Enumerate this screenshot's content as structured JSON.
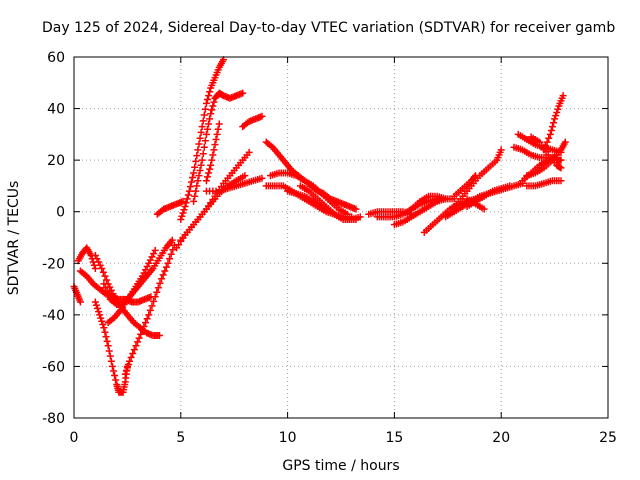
{
  "chart_data": {
    "type": "scatter",
    "title": "Day 125 of 2024, Sidereal Day-to-day VTEC variation (SDTVAR) for receiver gamb",
    "xlabel": "GPS time / hours",
    "ylabel": "SDTVAR / TECUs",
    "xlim": [
      0,
      25
    ],
    "ylim": [
      -80,
      60
    ],
    "xticks": [
      "0",
      "5",
      "10",
      "15",
      "20",
      "25"
    ],
    "yticks": [
      "-80",
      "-60",
      "-40",
      "-20",
      "0",
      "20",
      "40",
      "60"
    ],
    "grid": true,
    "marker": "plus",
    "color": "#ff0000",
    "series": [
      {
        "values": [
          [
            0.0,
            -29
          ],
          [
            0.15,
            -32
          ],
          [
            0.3,
            -35
          ]
        ]
      },
      {
        "values": [
          [
            0.2,
            -19
          ],
          [
            0.4,
            -16
          ],
          [
            0.6,
            -14
          ],
          [
            0.8,
            -17
          ],
          [
            1.0,
            -22
          ]
        ]
      },
      {
        "values": [
          [
            0.3,
            -23
          ],
          [
            0.6,
            -25
          ],
          [
            0.9,
            -28
          ],
          [
            1.2,
            -30
          ],
          [
            1.5,
            -32
          ],
          [
            1.8,
            -33
          ],
          [
            2.1,
            -34
          ],
          [
            2.4,
            -34
          ],
          [
            2.7,
            -35
          ],
          [
            3.0,
            -35
          ],
          [
            3.3,
            -34
          ],
          [
            3.6,
            -33
          ]
        ]
      },
      {
        "values": [
          [
            1.0,
            -17
          ],
          [
            1.3,
            -22
          ],
          [
            1.6,
            -28
          ],
          [
            1.9,
            -33
          ],
          [
            2.2,
            -37
          ],
          [
            2.5,
            -40
          ],
          [
            2.8,
            -43
          ],
          [
            3.1,
            -45
          ],
          [
            3.4,
            -47
          ],
          [
            3.7,
            -48
          ],
          [
            4.0,
            -48
          ]
        ]
      },
      {
        "values": [
          [
            1.0,
            -35
          ],
          [
            1.2,
            -40
          ],
          [
            1.4,
            -45
          ],
          [
            1.6,
            -52
          ],
          [
            1.8,
            -60
          ],
          [
            2.0,
            -67
          ],
          [
            2.1,
            -70
          ],
          [
            2.3,
            -70
          ],
          [
            2.4,
            -66
          ],
          [
            2.5,
            -60
          ]
        ]
      },
      {
        "values": [
          [
            2.4,
            -63
          ],
          [
            2.6,
            -58
          ],
          [
            2.9,
            -52
          ],
          [
            3.2,
            -46
          ],
          [
            3.5,
            -40
          ],
          [
            3.8,
            -33
          ],
          [
            4.1,
            -26
          ],
          [
            4.4,
            -20
          ],
          [
            4.7,
            -13
          ]
        ]
      },
      {
        "values": [
          [
            1.6,
            -43
          ],
          [
            1.9,
            -41
          ],
          [
            2.2,
            -38
          ],
          [
            2.5,
            -34
          ],
          [
            2.8,
            -31
          ],
          [
            3.1,
            -28
          ],
          [
            3.4,
            -25
          ],
          [
            3.7,
            -22
          ],
          [
            4.0,
            -18
          ],
          [
            4.3,
            -14
          ],
          [
            4.6,
            -11
          ]
        ]
      },
      {
        "values": [
          [
            1.4,
            -28
          ],
          [
            1.7,
            -34
          ],
          [
            2.0,
            -36
          ],
          [
            2.3,
            -36
          ],
          [
            2.6,
            -33
          ],
          [
            2.9,
            -29
          ],
          [
            3.2,
            -25
          ],
          [
            3.5,
            -20
          ],
          [
            3.8,
            -15
          ]
        ]
      },
      {
        "values": [
          [
            3.9,
            -1
          ],
          [
            4.2,
            1
          ],
          [
            4.5,
            2
          ],
          [
            4.8,
            3
          ],
          [
            5.1,
            4
          ]
        ]
      },
      {
        "values": [
          [
            5.0,
            -3
          ],
          [
            5.2,
            2
          ],
          [
            5.4,
            8
          ],
          [
            5.6,
            15
          ],
          [
            5.8,
            24
          ],
          [
            6.0,
            33
          ],
          [
            6.2,
            42
          ],
          [
            6.4,
            48
          ],
          [
            6.6,
            52
          ],
          [
            6.8,
            56
          ],
          [
            7.0,
            59
          ]
        ]
      },
      {
        "values": [
          [
            4.8,
            -14
          ],
          [
            5.2,
            -9
          ],
          [
            5.6,
            -5
          ],
          [
            6.0,
            -1
          ],
          [
            6.4,
            3
          ],
          [
            6.8,
            7
          ],
          [
            7.2,
            10
          ],
          [
            7.6,
            12
          ],
          [
            8.0,
            14
          ]
        ]
      },
      {
        "values": [
          [
            5.0,
            -11
          ],
          [
            5.4,
            -7
          ],
          [
            5.8,
            -3
          ],
          [
            6.2,
            1
          ],
          [
            6.6,
            6
          ],
          [
            7.0,
            11
          ],
          [
            7.4,
            15
          ],
          [
            7.8,
            19
          ],
          [
            8.2,
            23
          ]
        ]
      },
      {
        "values": [
          [
            5.6,
            4
          ],
          [
            5.8,
            12
          ],
          [
            6.0,
            20
          ],
          [
            6.2,
            30
          ],
          [
            6.4,
            38
          ],
          [
            6.6,
            44
          ],
          [
            6.8,
            46
          ],
          [
            7.0,
            45
          ],
          [
            7.3,
            44
          ],
          [
            7.6,
            45
          ],
          [
            7.9,
            46
          ]
        ]
      },
      {
        "values": [
          [
            6.2,
            12
          ],
          [
            6.4,
            18
          ],
          [
            6.6,
            26
          ],
          [
            6.8,
            34
          ]
        ]
      },
      {
        "values": [
          [
            7.9,
            33
          ],
          [
            8.2,
            35
          ],
          [
            8.5,
            36
          ],
          [
            8.8,
            37
          ]
        ]
      },
      {
        "values": [
          [
            6.2,
            8
          ],
          [
            6.8,
            8
          ],
          [
            7.2,
            9
          ],
          [
            7.6,
            10
          ],
          [
            8.0,
            11
          ],
          [
            8.4,
            12
          ],
          [
            8.8,
            13
          ]
        ]
      },
      {
        "values": [
          [
            9.0,
            27
          ],
          [
            9.3,
            25
          ],
          [
            9.6,
            22
          ],
          [
            9.9,
            19
          ],
          [
            10.2,
            16
          ],
          [
            10.5,
            14
          ],
          [
            10.8,
            12
          ],
          [
            11.1,
            10
          ],
          [
            11.4,
            8
          ],
          [
            11.7,
            7
          ],
          [
            12.0,
            5
          ],
          [
            12.3,
            4
          ],
          [
            12.6,
            3
          ],
          [
            12.9,
            2
          ],
          [
            13.2,
            1
          ]
        ]
      },
      {
        "values": [
          [
            9.0,
            10
          ],
          [
            9.4,
            10
          ],
          [
            9.8,
            10
          ],
          [
            10.2,
            8
          ],
          [
            10.6,
            6
          ],
          [
            11.0,
            4
          ],
          [
            11.4,
            2
          ],
          [
            11.8,
            0
          ],
          [
            12.2,
            -1
          ],
          [
            12.6,
            -2
          ],
          [
            13.0,
            -2
          ]
        ]
      },
      {
        "values": [
          [
            9.2,
            14
          ],
          [
            9.6,
            15
          ],
          [
            10.0,
            15
          ],
          [
            10.4,
            14
          ],
          [
            10.8,
            12
          ],
          [
            11.2,
            10
          ],
          [
            11.6,
            7
          ],
          [
            12.0,
            4
          ],
          [
            12.4,
            1
          ],
          [
            12.8,
            -1
          ]
        ]
      },
      {
        "values": [
          [
            10.0,
            8
          ],
          [
            10.4,
            7
          ],
          [
            10.8,
            6
          ],
          [
            11.2,
            4
          ],
          [
            11.6,
            2
          ],
          [
            12.0,
            0
          ],
          [
            12.4,
            -2
          ],
          [
            12.8,
            -3
          ],
          [
            13.2,
            -3
          ]
        ]
      },
      {
        "values": [
          [
            10.6,
            10
          ],
          [
            11.0,
            8
          ],
          [
            11.4,
            5
          ],
          [
            11.8,
            2
          ],
          [
            12.2,
            -1
          ],
          [
            12.6,
            -3
          ],
          [
            13.0,
            -3
          ],
          [
            13.4,
            -2
          ]
        ]
      },
      {
        "values": [
          [
            13.8,
            -1
          ],
          [
            14.2,
            0
          ],
          [
            14.6,
            0
          ],
          [
            15.0,
            0
          ],
          [
            15.4,
            0
          ],
          [
            15.8,
            -1
          ]
        ]
      },
      {
        "values": [
          [
            14.2,
            -2
          ],
          [
            14.6,
            -2
          ],
          [
            15.0,
            -2
          ],
          [
            15.4,
            -1
          ],
          [
            15.8,
            1
          ],
          [
            16.2,
            3
          ],
          [
            16.6,
            4
          ],
          [
            17.0,
            5
          ]
        ]
      },
      {
        "values": [
          [
            15.0,
            -5
          ],
          [
            15.4,
            -4
          ],
          [
            15.8,
            -2
          ],
          [
            16.2,
            0
          ],
          [
            16.6,
            2
          ],
          [
            17.0,
            4
          ],
          [
            17.4,
            5
          ],
          [
            17.8,
            5
          ]
        ]
      },
      {
        "values": [
          [
            15.8,
            1
          ],
          [
            16.2,
            4
          ],
          [
            16.6,
            6
          ],
          [
            17.0,
            6
          ],
          [
            17.4,
            5
          ]
        ]
      },
      {
        "values": [
          [
            16.4,
            -8
          ],
          [
            16.8,
            -5
          ],
          [
            17.2,
            -2
          ],
          [
            17.6,
            1
          ],
          [
            18.0,
            3
          ],
          [
            18.4,
            4
          ],
          [
            18.8,
            5
          ],
          [
            19.2,
            6
          ]
        ]
      },
      {
        "values": [
          [
            17.8,
            2
          ],
          [
            18.2,
            6
          ],
          [
            18.6,
            10
          ],
          [
            19.0,
            14
          ],
          [
            19.4,
            17
          ],
          [
            19.8,
            20
          ],
          [
            20.0,
            24
          ]
        ]
      },
      {
        "values": [
          [
            17.4,
            -2
          ],
          [
            17.8,
            0
          ],
          [
            18.2,
            2
          ],
          [
            18.6,
            4
          ],
          [
            19.0,
            6
          ],
          [
            19.4,
            7
          ],
          [
            19.8,
            8
          ],
          [
            20.2,
            9
          ],
          [
            20.6,
            10
          ],
          [
            21.0,
            11
          ]
        ]
      },
      {
        "values": [
          [
            17.8,
            6
          ],
          [
            18.2,
            9
          ],
          [
            18.6,
            12
          ],
          [
            18.8,
            14
          ]
        ]
      },
      {
        "values": [
          [
            18.4,
            2
          ],
          [
            18.8,
            4
          ],
          [
            19.2,
            6
          ],
          [
            19.6,
            8
          ],
          [
            20.0,
            9
          ],
          [
            20.4,
            10
          ]
        ]
      },
      {
        "values": [
          [
            18.4,
            5
          ],
          [
            18.8,
            3
          ],
          [
            19.2,
            1
          ]
        ]
      },
      {
        "values": [
          [
            21.2,
            10
          ],
          [
            21.6,
            10
          ],
          [
            22.0,
            11
          ],
          [
            22.4,
            12
          ],
          [
            22.8,
            12
          ]
        ]
      },
      {
        "values": [
          [
            20.8,
            30
          ],
          [
            21.2,
            28
          ],
          [
            21.6,
            26
          ],
          [
            22.0,
            25
          ],
          [
            22.4,
            24
          ],
          [
            22.8,
            23
          ]
        ]
      },
      {
        "values": [
          [
            21.2,
            14
          ],
          [
            21.6,
            15
          ],
          [
            22.0,
            17
          ],
          [
            22.4,
            20
          ],
          [
            22.8,
            24
          ],
          [
            23.0,
            27
          ]
        ]
      },
      {
        "values": [
          [
            21.0,
            12
          ],
          [
            21.4,
            15
          ],
          [
            21.8,
            18
          ],
          [
            22.2,
            20
          ],
          [
            22.6,
            22
          ]
        ]
      },
      {
        "values": [
          [
            20.6,
            25
          ],
          [
            21.0,
            24
          ],
          [
            21.4,
            22
          ],
          [
            21.8,
            21
          ],
          [
            22.2,
            21
          ],
          [
            22.6,
            20
          ],
          [
            22.8,
            20
          ]
        ]
      },
      {
        "values": [
          [
            21.4,
            29
          ],
          [
            21.8,
            27
          ],
          [
            22.2,
            22
          ],
          [
            22.6,
            18
          ],
          [
            22.8,
            17
          ]
        ]
      },
      {
        "values": [
          [
            22.0,
            24
          ],
          [
            22.3,
            30
          ],
          [
            22.5,
            36
          ],
          [
            22.7,
            41
          ],
          [
            22.9,
            45
          ]
        ]
      }
    ]
  }
}
